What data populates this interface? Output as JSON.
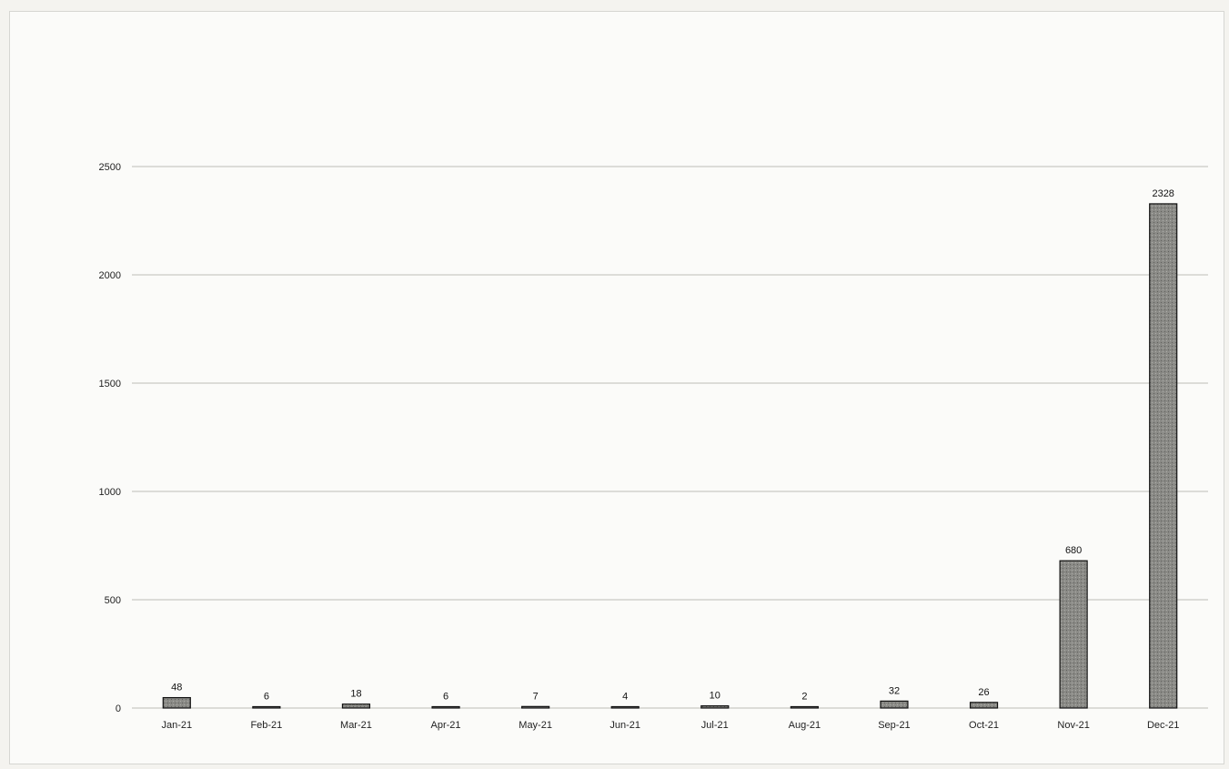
{
  "chart_data": {
    "type": "bar",
    "title": "",
    "xlabel": "",
    "ylabel": "",
    "categories": [
      "Jan-21",
      "Feb-21",
      "Mar-21",
      "Apr-21",
      "May-21",
      "Jun-21",
      "Jul-21",
      "Aug-21",
      "Sep-21",
      "Oct-21",
      "Nov-21",
      "Dec-21"
    ],
    "values": [
      48,
      6,
      18,
      6,
      7,
      4,
      10,
      2,
      32,
      26,
      680,
      2328
    ],
    "data_labels": [
      "48",
      "6",
      "18",
      "6",
      "7",
      "4",
      "10",
      "2",
      "32",
      "26",
      "680",
      "2328"
    ],
    "ylim": [
      0,
      2500
    ],
    "yticks": [
      0,
      500,
      1000,
      1500,
      2000,
      2500
    ],
    "ytick_labels": [
      "0",
      "500",
      "1000",
      "1500",
      "2000",
      "2500"
    ],
    "grid": true,
    "legend": "none",
    "bar_color": "#8a8a86",
    "bar_edge_color": "#111111"
  }
}
